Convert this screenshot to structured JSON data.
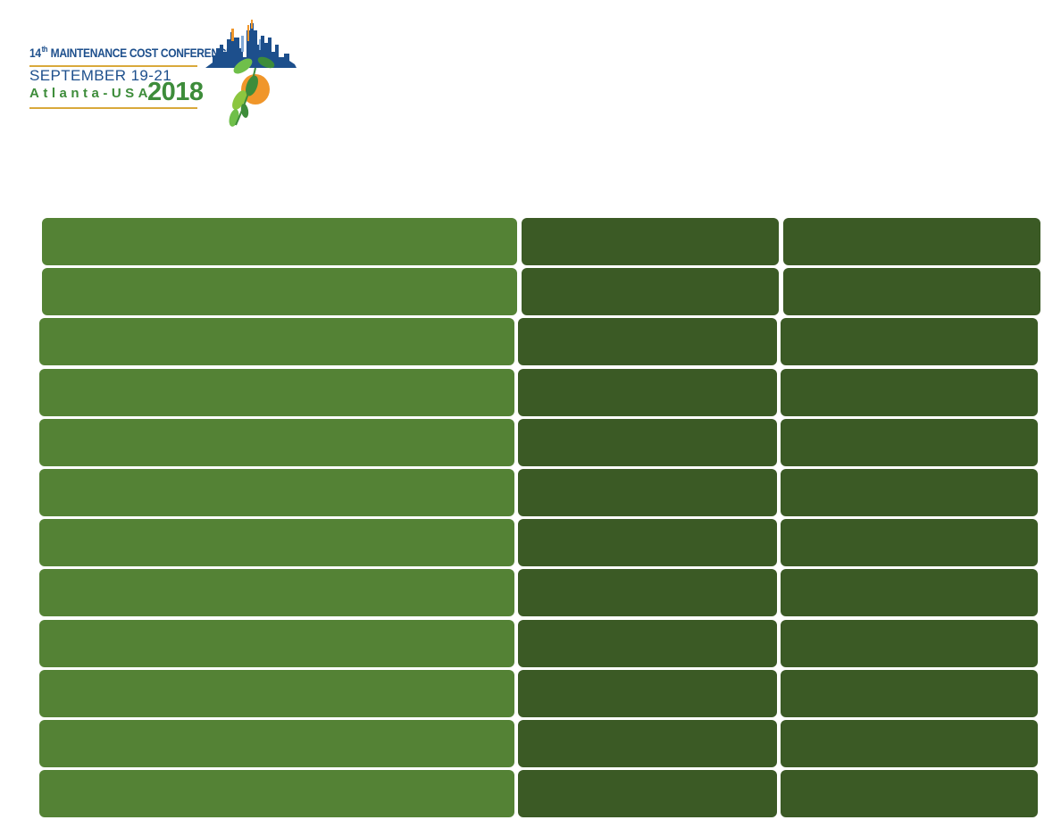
{
  "logo": {
    "ordinal": "14",
    "ordinal_suffix": "th",
    "title": "MAINTENANCE COST CONFERENCE",
    "dates": "SEPTEMBER 19-21",
    "location": "Atlanta-USA",
    "year": "2018",
    "colors": {
      "navy": "#1d4f8c",
      "green": "#3d8c3a",
      "gold": "#d9a93b",
      "orange": "#f0962a"
    }
  },
  "table": {
    "rows": 12,
    "columns": 3,
    "colors": {
      "first_column": "#548235",
      "other_columns": "#3b5a25"
    }
  }
}
